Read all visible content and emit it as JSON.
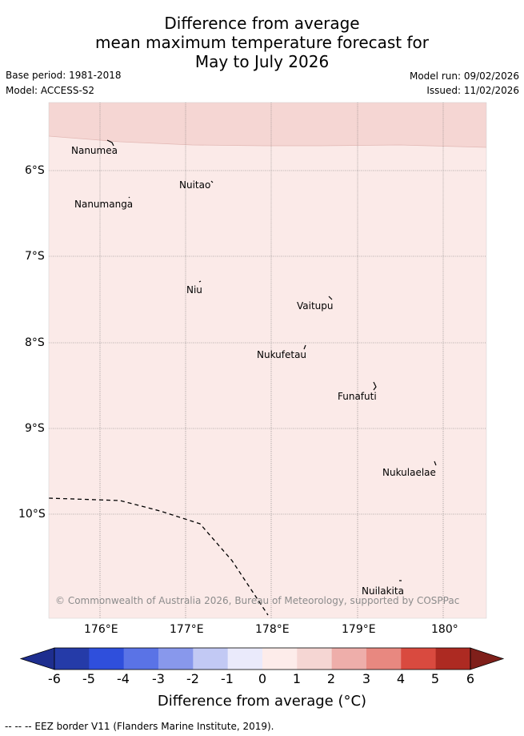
{
  "title": {
    "line1": "Difference from average",
    "line2": "mean maximum temperature forecast for",
    "line3": "May to July 2026"
  },
  "meta": {
    "base_period": "Base period: 1981-2018",
    "model": "Model: ACCESS-S2",
    "model_run": "Model run: 09/02/2026",
    "issued": "Issued: 11/02/2026"
  },
  "map": {
    "lat_labels": [
      "6°S",
      "7°S",
      "8°S",
      "9°S",
      "10°S"
    ],
    "lon_labels": [
      "176°E",
      "177°E",
      "178°E",
      "179°E",
      "180°"
    ],
    "places": [
      "Nanumea",
      "Nuitao",
      "Nanumanga",
      "Niu",
      "Vaitupu",
      "Nukufetau",
      "Funafuti",
      "Nukulaelae",
      "Nuilakita"
    ],
    "copyright": "© Commonwealth of Australia 2026, Bureau of Meteorology, supported by COSPPac",
    "colors": {
      "category_0_1": "#fbeae8",
      "category_1_2": "#f5d6d3"
    }
  },
  "colorbar": {
    "ticks": [
      "-6",
      "-5",
      "-4",
      "-3",
      "-2",
      "-1",
      "0",
      "1",
      "2",
      "3",
      "4",
      "5",
      "6"
    ],
    "colors": [
      "#1e2e8f",
      "#253ba8",
      "#2f4fdc",
      "#5a73e6",
      "#8898ec",
      "#c2c9f4",
      "#eaeafb",
      "#fdecea",
      "#f5d6d3",
      "#eeaeaa",
      "#e88880",
      "#d94a3f",
      "#ad2a22",
      "#7f1f1a"
    ],
    "title": "Difference from average (°C)"
  },
  "footer": "--  --  -- EEZ border V11 (Flanders Marine Institute, 2019)."
}
